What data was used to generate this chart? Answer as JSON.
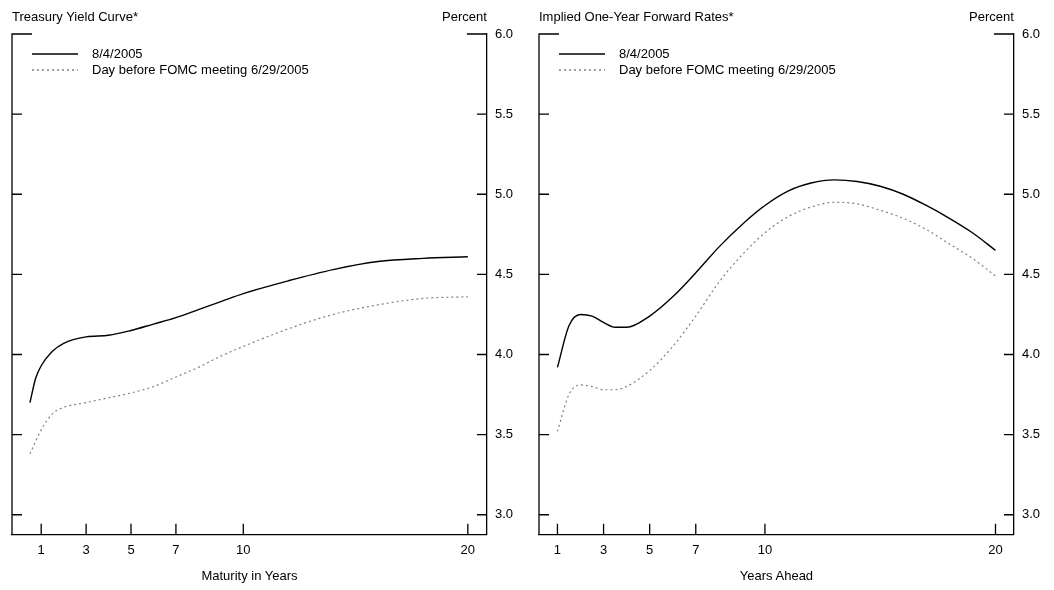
{
  "chart_data": [
    {
      "type": "line",
      "title": "Treasury Yield Curve*",
      "ylabel": "Percent",
      "xlabel": "Maturity in Years",
      "xlim": [
        -0.3,
        20.85
      ],
      "xticks": [
        1,
        3,
        5,
        7,
        10,
        20
      ],
      "ylim": [
        2.875,
        6.0
      ],
      "yticks": [
        {
          "value": 3,
          "label": "3.0"
        },
        3.5,
        {
          "value": 4,
          "label": "4.0"
        },
        4.5,
        {
          "value": 5,
          "label": "5.0"
        },
        5.5,
        {
          "value": 6,
          "label": "6.0"
        }
      ],
      "grid": false,
      "legend": "top left",
      "marker": "none",
      "series": [
        {
          "name": "8/4/2005",
          "color": "#000000",
          "line_style": "solid",
          "x": [
            0.5,
            0.75,
            1,
            1.5,
            2,
            3,
            4,
            5,
            6,
            7,
            8,
            9,
            10,
            12,
            14,
            16,
            18,
            20
          ],
          "values": [
            3.7,
            3.85,
            3.93,
            4.02,
            4.07,
            4.11,
            4.12,
            4.15,
            4.19,
            4.23,
            4.28,
            4.33,
            4.38,
            4.46,
            4.53,
            4.58,
            4.6,
            4.61
          ]
        },
        {
          "name": "Day before FOMC meeting 6/29/2005",
          "color": "#808080",
          "line_style": "dotted",
          "x": [
            0.5,
            1,
            1.5,
            2,
            3,
            4,
            5,
            6,
            7,
            8,
            9,
            10,
            12,
            14,
            16,
            18,
            20
          ],
          "values": [
            3.38,
            3.53,
            3.63,
            3.67,
            3.7,
            3.73,
            3.76,
            3.8,
            3.86,
            3.92,
            3.99,
            4.05,
            4.16,
            4.25,
            4.31,
            4.35,
            4.36
          ]
        }
      ]
    },
    {
      "type": "line",
      "title": "Implied One-Year Forward Rates*",
      "ylabel": "Percent",
      "xlabel": "Years Ahead",
      "xlim": [
        0.2,
        20.8
      ],
      "xticks": [
        1,
        3,
        5,
        7,
        10,
        20
      ],
      "ylim": [
        2.875,
        6.0
      ],
      "yticks": [
        {
          "value": 3,
          "label": "3.0"
        },
        3.5,
        {
          "value": 4,
          "label": "4.0"
        },
        4.5,
        {
          "value": 5,
          "label": "5.0"
        },
        5.5,
        {
          "value": 6,
          "label": "6.0"
        }
      ],
      "grid": false,
      "legend": "top left",
      "marker": "none",
      "series": [
        {
          "name": "8/4/2005",
          "color": "#000000",
          "line_style": "solid",
          "x": [
            1,
            1.5,
            2,
            2.5,
            3,
            3.5,
            4,
            5,
            6,
            7,
            8,
            9,
            10,
            11,
            12,
            13,
            14,
            15,
            16,
            17,
            18,
            19,
            20
          ],
          "values": [
            3.92,
            4.18,
            4.25,
            4.24,
            4.2,
            4.17,
            4.17,
            4.24,
            4.36,
            4.51,
            4.67,
            4.81,
            4.93,
            5.02,
            5.07,
            5.09,
            5.08,
            5.05,
            5.0,
            4.93,
            4.85,
            4.76,
            4.65
          ]
        },
        {
          "name": "Day before FOMC meeting 6/29/2005",
          "color": "#808080",
          "line_style": "dotted",
          "x": [
            1,
            1.5,
            2,
            2.5,
            3,
            3.5,
            4,
            5,
            6,
            7,
            8,
            9,
            10,
            11,
            12,
            13,
            14,
            15,
            16,
            17,
            18,
            19,
            20
          ],
          "values": [
            3.52,
            3.75,
            3.81,
            3.8,
            3.78,
            3.78,
            3.8,
            3.9,
            4.05,
            4.24,
            4.45,
            4.62,
            4.76,
            4.86,
            4.92,
            4.95,
            4.94,
            4.9,
            4.85,
            4.78,
            4.69,
            4.6,
            4.49
          ]
        }
      ]
    }
  ]
}
